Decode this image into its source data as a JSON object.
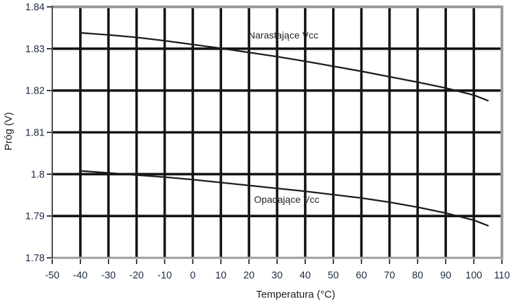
{
  "chart_data": {
    "type": "line",
    "title": "",
    "xlabel": "Temperatura (°C)",
    "ylabel": "Próg (V)",
    "xlim": [
      -50,
      110
    ],
    "ylim": [
      1.78,
      1.84
    ],
    "x_ticks": [
      -50,
      -40,
      -30,
      -20,
      -10,
      0,
      10,
      20,
      30,
      40,
      50,
      60,
      70,
      80,
      90,
      100,
      110
    ],
    "x_tick_labels": [
      "-50",
      "-40",
      "-30",
      "-20",
      "-10",
      "0",
      "10",
      "20",
      "30",
      "40",
      "50",
      "60",
      "70",
      "80",
      "90",
      "100",
      "110"
    ],
    "y_ticks": [
      1.78,
      1.79,
      1.8,
      1.81,
      1.82,
      1.83,
      1.84
    ],
    "y_tick_labels": [
      "1.78",
      "1.79",
      "1.8",
      "1.81",
      "1.82",
      "1.83",
      "1.84"
    ],
    "grid": "on",
    "legend_position": "none",
    "x": [
      -40,
      -30,
      -20,
      -10,
      0,
      10,
      20,
      30,
      40,
      50,
      60,
      70,
      80,
      90,
      100,
      105
    ],
    "series": [
      {
        "name": "Narastające Vcc",
        "values": [
          1.8338,
          1.8333,
          1.8327,
          1.8319,
          1.831,
          1.8301,
          1.8291,
          1.8281,
          1.827,
          1.8258,
          1.8246,
          1.8233,
          1.822,
          1.8206,
          1.8189,
          1.8176
        ]
      },
      {
        "name": "Opadające Vcc",
        "values": [
          1.8008,
          1.8003,
          1.7998,
          1.7993,
          1.7987,
          1.798,
          1.7973,
          1.7966,
          1.7959,
          1.7951,
          1.7943,
          1.7933,
          1.7921,
          1.7907,
          1.789,
          1.7877
        ]
      }
    ],
    "annotations": [
      {
        "text": "Narastające Vcc",
        "position": "above-upper-curve"
      },
      {
        "text": "Opadające Vcc",
        "position": "below-lower-curve"
      }
    ],
    "colors": {
      "curve": "#1d1d1d",
      "gridline": "#141414",
      "frame": "#9b9b9b",
      "left_axis": "#4a4a4a",
      "tick": "#111111",
      "tick_label": "#1e2a45",
      "background": "#ffffff"
    }
  }
}
